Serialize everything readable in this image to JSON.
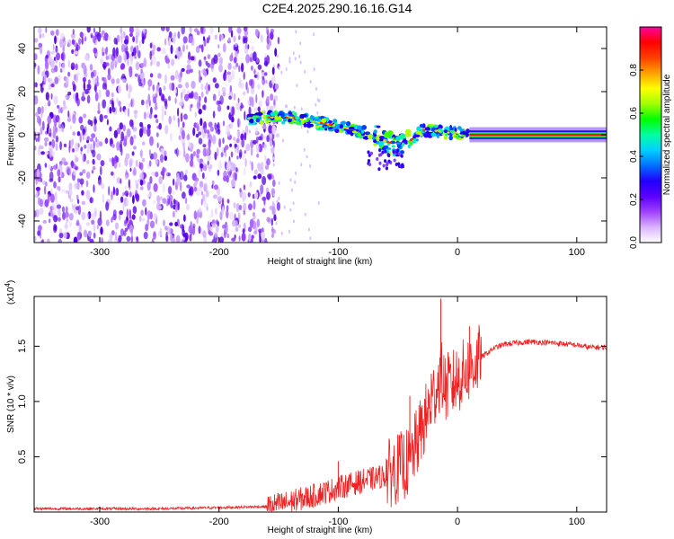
{
  "chart_data": [
    {
      "type": "heatmap",
      "title": "C2E4.2025.290.16.16.G14",
      "xlabel": "Height of straight line (km)",
      "ylabel": "Frequency (Hz)",
      "xlim": [
        -355,
        125
      ],
      "ylim": [
        -50,
        50
      ],
      "xticks": [
        -300,
        -200,
        -100,
        0,
        100
      ],
      "yticks": [
        -40,
        -20,
        0,
        20,
        40
      ],
      "colorbar": {
        "label": "Normalized spectral amplitude",
        "range": [
          0,
          1
        ],
        "ticks": [
          "0.0",
          "0.2",
          "0.4",
          "0.6",
          "0.8"
        ],
        "colors": [
          "#ffffff",
          "#d9b3ff",
          "#a040ff",
          "#5a00ff",
          "#2200ff",
          "#0070ff",
          "#00d0ff",
          "#00ffa0",
          "#00ff00",
          "#a0ff00",
          "#ffff00",
          "#ffa000",
          "#ff4000",
          "#ff0000",
          "#ff00a0"
        ]
      },
      "noise_region_km": [
        -355,
        -155
      ],
      "signal_track": {
        "x": [
          -175,
          -160,
          -140,
          -120,
          -100,
          -85,
          -70,
          -60,
          -50,
          -40,
          -30,
          -20,
          -10,
          0,
          10,
          125
        ],
        "y": [
          7,
          8,
          8,
          6,
          4,
          2,
          0,
          -3,
          -5,
          -3,
          2,
          2,
          1,
          1,
          0,
          0
        ]
      }
    },
    {
      "type": "line",
      "xlabel": "Height of straight line (km)",
      "ylabel": "SNR (10 * v/v)",
      "multiplier": "(x10",
      "multiplier_exp": "4",
      "multiplier_close": ")",
      "xlim": [
        -355,
        125
      ],
      "ylim": [
        0,
        1.95
      ],
      "xticks": [
        -300,
        -200,
        -100,
        0,
        100
      ],
      "yticks": [
        0.5,
        1.0,
        1.5
      ],
      "yticklabels": [
        "0.5",
        "1.0",
        "1.5"
      ],
      "color": "#ee2222",
      "series": [
        {
          "name": "SNR",
          "x": [
            -355,
            -300,
            -250,
            -200,
            -160,
            -140,
            -120,
            -100,
            -80,
            -60,
            -50,
            -40,
            -30,
            -20,
            -14,
            -10,
            -5,
            0,
            10,
            20,
            30,
            40,
            60,
            80,
            100,
            110,
            125
          ],
          "y": [
            0.03,
            0.03,
            0.03,
            0.04,
            0.05,
            0.09,
            0.15,
            0.22,
            0.28,
            0.33,
            0.4,
            0.45,
            0.75,
            1.05,
            1.25,
            1.12,
            1.15,
            1.2,
            1.3,
            1.4,
            1.48,
            1.52,
            1.54,
            1.53,
            1.51,
            1.49,
            1.49
          ]
        }
      ],
      "spikes": [
        {
          "x": -14,
          "y": 1.93
        },
        {
          "x": 10,
          "y": 1.68
        },
        {
          "x": -22,
          "y": 1.25
        },
        {
          "x": -40,
          "y": 1.05
        },
        {
          "x": -100,
          "y": 0.46
        }
      ]
    }
  ]
}
